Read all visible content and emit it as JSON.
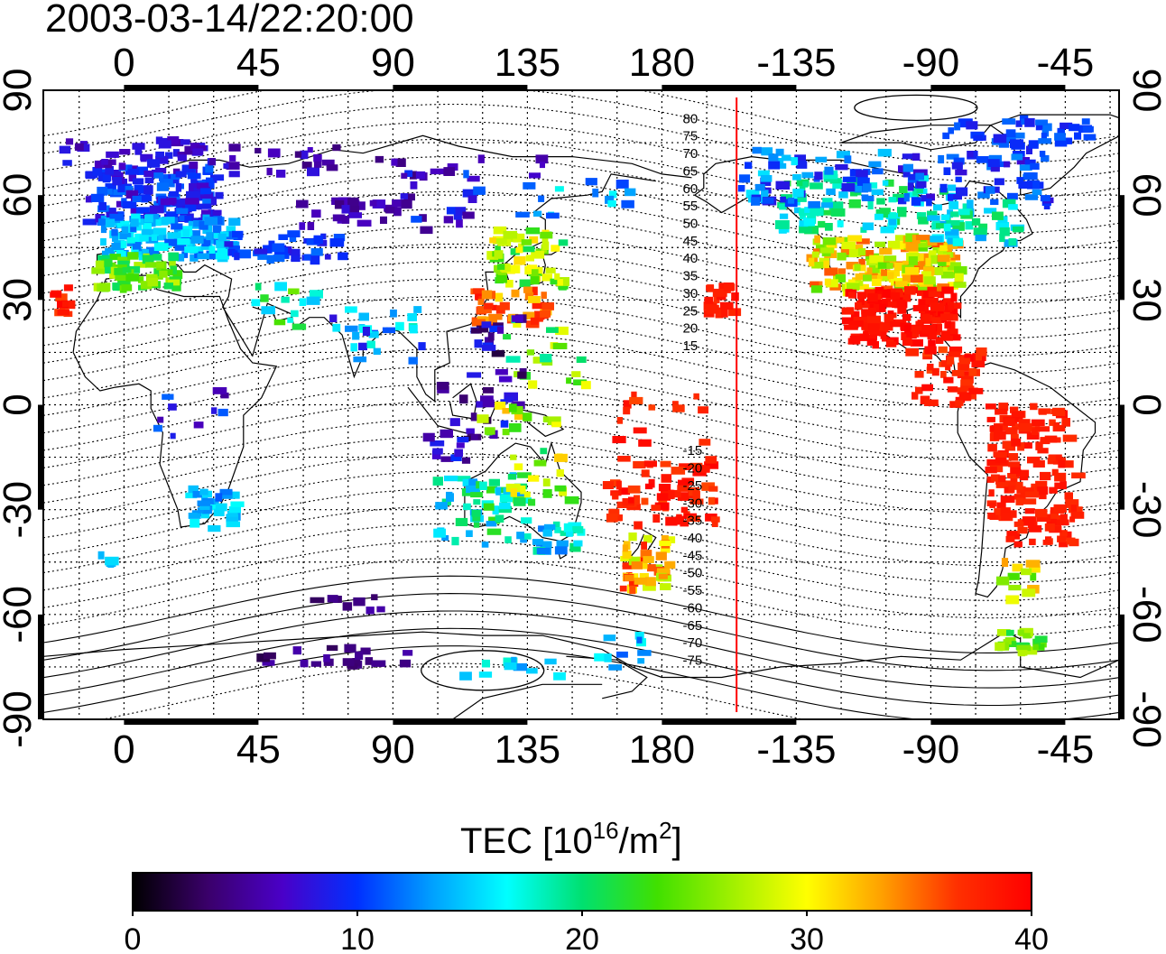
{
  "timestamp": "2003-03-14/22:20:00",
  "longitude_ticks": [
    "0",
    "45",
    "90",
    "135",
    "180",
    "-135",
    "-90",
    "-45"
  ],
  "latitude_ticks": [
    "90",
    "60",
    "30",
    "0",
    "-30",
    "-60",
    "-90"
  ],
  "mag_lat_labels": [
    "80",
    "75",
    "70",
    "65",
    "60",
    "55",
    "50",
    "45",
    "40",
    "35",
    "30",
    "25",
    "20",
    "15",
    "-15",
    "-20",
    "-25",
    "-30",
    "-35",
    "-40",
    "-45",
    "-50",
    "-55",
    "-60",
    "-65",
    "-70",
    "-75"
  ],
  "colorbar": {
    "title_prefix": "TEC  [10",
    "title_exp1": "16",
    "title_mid": "/m",
    "title_exp2": "2",
    "title_suffix": "]",
    "min": 0,
    "max": 40,
    "tick_labels": [
      "0",
      "10",
      "20",
      "30",
      "40"
    ],
    "stops": [
      "#000000",
      "#3a006a",
      "#4a00c8",
      "#0030ff",
      "#00a0ff",
      "#00ffff",
      "#00e070",
      "#40e000",
      "#a0f000",
      "#ffff00",
      "#ffa000",
      "#ff3000",
      "#ff0000"
    ]
  },
  "colors": {
    "frame": "#000000",
    "meridian_marker": "#ff0000"
  },
  "map": {
    "lon_range": [
      -27,
      333
    ],
    "lat_range": [
      -90,
      90
    ],
    "meridian_marker_lon": 205
  }
}
